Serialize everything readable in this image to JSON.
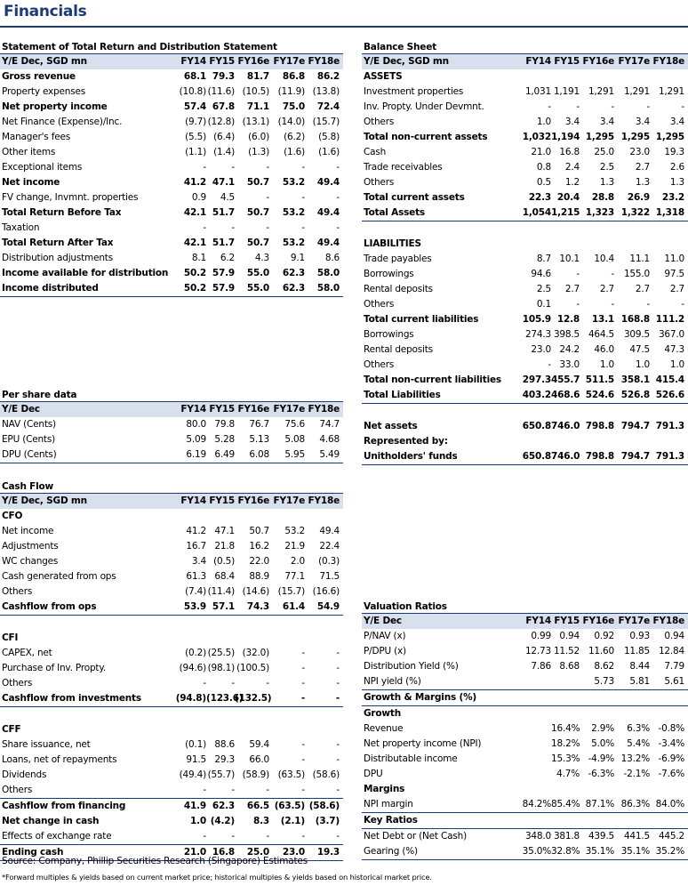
{
  "page_title": "Financials",
  "colors": {
    "accent": "#1a3a78",
    "header_bg": "#d8e0ee"
  },
  "tables": {
    "income": {
      "title": "Statement of Total Return and Distribution Statement",
      "header": [
        "Y/E Dec, SGD mn",
        "FY14",
        "FY15",
        "FY16e",
        "FY17e",
        "FY18e"
      ],
      "rows": [
        {
          "label": "Gross revenue",
          "values": [
            "68.1",
            "79.3",
            "81.7",
            "86.8",
            "86.2"
          ],
          "bold": true
        },
        {
          "label": "Property expenses",
          "values": [
            "(10.8)",
            "(11.6)",
            "(10.5)",
            "(11.9)",
            "(13.8)"
          ]
        },
        {
          "label": "Net property income",
          "values": [
            "57.4",
            "67.8",
            "71.1",
            "75.0",
            "72.4"
          ],
          "bold": true
        },
        {
          "label": "Net Finance (Expense)/Inc.",
          "values": [
            "(9.7)",
            "(12.8)",
            "(13.1)",
            "(14.0)",
            "(15.7)"
          ]
        },
        {
          "label": "Manager's fees",
          "values": [
            "(5.5)",
            "(6.4)",
            "(6.0)",
            "(6.2)",
            "(5.8)"
          ]
        },
        {
          "label": "Other items",
          "values": [
            "(1.1)",
            "(1.4)",
            "(1.3)",
            "(1.6)",
            "(1.6)"
          ]
        },
        {
          "label": "Exceptional items",
          "values": [
            "-",
            "-",
            "-",
            "-",
            "-"
          ]
        },
        {
          "label": "Net income",
          "values": [
            "41.2",
            "47.1",
            "50.7",
            "53.2",
            "49.4"
          ],
          "bold": true
        },
        {
          "label": "FV change, Invmnt. properties",
          "values": [
            "0.9",
            "4.5",
            "-",
            "-",
            "-"
          ]
        },
        {
          "label": "Total Return Before Tax",
          "values": [
            "42.1",
            "51.7",
            "50.7",
            "53.2",
            "49.4"
          ],
          "bold": true
        },
        {
          "label": "Taxation",
          "values": [
            "-",
            "-",
            "-",
            "-",
            "-"
          ]
        },
        {
          "label": "Total Return After Tax",
          "values": [
            "42.1",
            "51.7",
            "50.7",
            "53.2",
            "49.4"
          ],
          "bold": true
        },
        {
          "label": "Distribution adjustments",
          "values": [
            "8.1",
            "6.2",
            "4.3",
            "9.1",
            "8.6"
          ]
        },
        {
          "label": "Income available for distribution",
          "values": [
            "50.2",
            "57.9",
            "55.0",
            "62.3",
            "58.0"
          ],
          "bold": true
        },
        {
          "label": "Income distributed",
          "values": [
            "50.2",
            "57.9",
            "55.0",
            "62.3",
            "58.0"
          ],
          "bold": true,
          "bottom": true
        }
      ]
    },
    "pershare": {
      "title": "Per share data",
      "header": [
        "Y/E Dec",
        "FY14",
        "FY15",
        "FY16e",
        "FY17e",
        "FY18e"
      ],
      "rows": [
        {
          "label": "NAV (Cents)",
          "values": [
            "80.0",
            "79.8",
            "76.7",
            "75.6",
            "74.7"
          ]
        },
        {
          "label": "EPU (Cents)",
          "values": [
            "5.09",
            "5.28",
            "5.13",
            "5.08",
            "4.68"
          ]
        },
        {
          "label": "DPU (Cents)",
          "values": [
            "6.19",
            "6.49",
            "6.08",
            "5.95",
            "5.49"
          ],
          "bottom": true
        }
      ]
    },
    "cashflow": {
      "title": "Cash Flow",
      "header": [
        "Y/E Dec, SGD mn",
        "FY14",
        "FY15",
        "FY16e",
        "FY17e",
        "FY18e"
      ],
      "rows": [
        {
          "label": "CFO",
          "values": [
            "",
            "",
            "",
            "",
            ""
          ],
          "section": true
        },
        {
          "label": "Net income",
          "values": [
            "41.2",
            "47.1",
            "50.7",
            "53.2",
            "49.4"
          ]
        },
        {
          "label": "Adjustments",
          "values": [
            "16.7",
            "21.8",
            "16.2",
            "21.9",
            "22.4"
          ]
        },
        {
          "label": "WC changes",
          "values": [
            "3.4",
            "(0.5)",
            "22.0",
            "2.0",
            "(0.3)"
          ]
        },
        {
          "label": "Cash generated from ops",
          "values": [
            "61.3",
            "68.4",
            "88.9",
            "77.1",
            "71.5"
          ]
        },
        {
          "label": "Others",
          "values": [
            "(7.4)",
            "(11.4)",
            "(14.6)",
            "(15.7)",
            "(16.6)"
          ]
        },
        {
          "label": "Cashflow from ops",
          "values": [
            "53.9",
            "57.1",
            "74.3",
            "61.4",
            "54.9"
          ],
          "bold": true,
          "bottom": true
        },
        {
          "label": "",
          "values": [
            "",
            "",
            "",
            "",
            ""
          ]
        },
        {
          "label": "CFI",
          "values": [
            "",
            "",
            "",
            "",
            ""
          ],
          "section": true
        },
        {
          "label": "CAPEX, net",
          "values": [
            "(0.2)",
            "(25.5)",
            "(32.0)",
            "-",
            "-"
          ]
        },
        {
          "label": "Purchase of Inv. Propty.",
          "values": [
            "(94.6)",
            "(98.1)",
            "(100.5)",
            "-",
            "-"
          ]
        },
        {
          "label": "Others",
          "values": [
            "-",
            "-",
            "-",
            "-",
            "-"
          ]
        },
        {
          "label": "Cashflow from investments",
          "values": [
            "(94.8)",
            "(123.6)",
            "(132.5)",
            "-",
            "-"
          ],
          "bold": true,
          "bottom": true
        },
        {
          "label": "",
          "values": [
            "",
            "",
            "",
            "",
            ""
          ]
        },
        {
          "label": "CFF",
          "values": [
            "",
            "",
            "",
            "",
            ""
          ],
          "section": true
        },
        {
          "label": "Share issuance, net",
          "values": [
            "(0.1)",
            "88.6",
            "59.4",
            "-",
            "-"
          ]
        },
        {
          "label": "Loans, net of repayments",
          "values": [
            "91.5",
            "29.3",
            "66.0",
            "-",
            "-"
          ]
        },
        {
          "label": "Dividends",
          "values": [
            "(49.4)",
            "(55.7)",
            "(58.9)",
            "(63.5)",
            "(58.6)"
          ]
        },
        {
          "label": "Others",
          "values": [
            "-",
            "-",
            "-",
            "-",
            "-"
          ]
        },
        {
          "label": "Cashflow from financing",
          "values": [
            "41.9",
            "62.3",
            "66.5",
            "(63.5)",
            "(58.6)"
          ],
          "bold": true,
          "top": true
        },
        {
          "label": "Net change in cash",
          "values": [
            "1.0",
            "(4.2)",
            "8.3",
            "(2.1)",
            "(3.7)"
          ],
          "bold": true
        },
        {
          "label": "Effects of exchange rate",
          "values": [
            "-",
            "-",
            "-",
            "-",
            "-"
          ]
        },
        {
          "label": "Ending cash",
          "values": [
            "21.0",
            "16.8",
            "25.0",
            "23.0",
            "19.3"
          ],
          "bold": true,
          "top": true,
          "bottom": true
        }
      ]
    },
    "balance": {
      "title": "Balance Sheet",
      "header": [
        "Y/E Dec, SGD mn",
        "FY14",
        "FY15",
        "FY16e",
        "FY17e",
        "FY18e"
      ],
      "rows": [
        {
          "label": "ASSETS",
          "values": [
            "",
            "",
            "",
            "",
            ""
          ],
          "section": true
        },
        {
          "label": "Investment properties",
          "values": [
            "1,031",
            "1,191",
            "1,291",
            "1,291",
            "1,291"
          ]
        },
        {
          "label": "Inv. Propty. Under Devmnt.",
          "values": [
            "-",
            "-",
            "-",
            "-",
            "-"
          ]
        },
        {
          "label": "Others",
          "values": [
            "1.0",
            "3.4",
            "3.4",
            "3.4",
            "3.4"
          ]
        },
        {
          "label": "Total non-current assets",
          "values": [
            "1,032",
            "1,194",
            "1,295",
            "1,295",
            "1,295"
          ],
          "bold": true
        },
        {
          "label": "Cash",
          "values": [
            "21.0",
            "16.8",
            "25.0",
            "23.0",
            "19.3"
          ]
        },
        {
          "label": "Trade receivables",
          "values": [
            "0.8",
            "2.4",
            "2.5",
            "2.7",
            "2.6"
          ]
        },
        {
          "label": "Others",
          "values": [
            "0.5",
            "1.2",
            "1.3",
            "1.3",
            "1.3"
          ]
        },
        {
          "label": "Total current assets",
          "values": [
            "22.3",
            "20.4",
            "28.8",
            "26.9",
            "23.2"
          ],
          "bold": true
        },
        {
          "label": "Total Assets",
          "values": [
            "1,054",
            "1,215",
            "1,323",
            "1,322",
            "1,318"
          ],
          "bold": true,
          "bottom": true
        },
        {
          "label": "",
          "values": [
            "",
            "",
            "",
            "",
            ""
          ]
        },
        {
          "label": "LIABILITIES",
          "values": [
            "",
            "",
            "",
            "",
            ""
          ],
          "section": true
        },
        {
          "label": "Trade payables",
          "values": [
            "8.7",
            "10.1",
            "10.4",
            "11.1",
            "11.0"
          ]
        },
        {
          "label": "Borrowings",
          "values": [
            "94.6",
            "-",
            "-",
            "155.0",
            "97.5"
          ]
        },
        {
          "label": "Rental deposits",
          "values": [
            "2.5",
            "2.7",
            "2.7",
            "2.7",
            "2.7"
          ]
        },
        {
          "label": "Others",
          "values": [
            "0.1",
            "-",
            "-",
            "-",
            "-"
          ]
        },
        {
          "label": "Total current liabilities",
          "values": [
            "105.9",
            "12.8",
            "13.1",
            "168.8",
            "111.2"
          ],
          "bold": true
        },
        {
          "label": "Borrowings",
          "values": [
            "274.3",
            "398.5",
            "464.5",
            "309.5",
            "367.0"
          ]
        },
        {
          "label": "Rental deposits",
          "values": [
            "23.0",
            "24.2",
            "46.0",
            "47.5",
            "47.3"
          ]
        },
        {
          "label": "Others",
          "values": [
            "-",
            "33.0",
            "1.0",
            "1.0",
            "1.0"
          ]
        },
        {
          "label": "Total non-current liabilities",
          "values": [
            "297.3",
            "455.7",
            "511.5",
            "358.1",
            "415.4"
          ],
          "bold": true
        },
        {
          "label": "Total Liabilities",
          "values": [
            "403.2",
            "468.6",
            "524.6",
            "526.8",
            "526.6"
          ],
          "bold": true,
          "bottom": true
        },
        {
          "label": "",
          "values": [
            "",
            "",
            "",
            "",
            ""
          ]
        },
        {
          "label": "Net assets",
          "values": [
            "650.8",
            "746.0",
            "798.8",
            "794.7",
            "791.3"
          ],
          "bold": true
        },
        {
          "label": "Represented by:",
          "values": [
            "",
            "",
            "",
            "",
            ""
          ],
          "bold": true
        },
        {
          "label": "Unitholders' funds",
          "values": [
            "650.8",
            "746.0",
            "798.8",
            "794.7",
            "791.3"
          ],
          "bold": true,
          "bottom": true
        }
      ]
    },
    "valuation": {
      "title": "Valuation Ratios",
      "header": [
        "Y/E Dec",
        "FY14",
        "FY15",
        "FY16e",
        "FY17e",
        "FY18e"
      ],
      "rows": [
        {
          "label": "P/NAV (x)",
          "values": [
            "0.99",
            "0.94",
            "0.92",
            "0.93",
            "0.94"
          ]
        },
        {
          "label": "P/DPU (x)",
          "values": [
            "12.73",
            "11.52",
            "11.60",
            "11.85",
            "12.84"
          ]
        },
        {
          "label": "Distribution Yield (%)",
          "values": [
            "7.86",
            "8.68",
            "8.62",
            "8.44",
            "7.79"
          ]
        },
        {
          "label": "NPI yield (%)",
          "values": [
            "",
            "",
            "5.73",
            "5.81",
            "5.61"
          ],
          "bottom": true
        },
        {
          "label": "Growth & Margins (%)",
          "values": [
            "",
            "",
            "",
            "",
            ""
          ],
          "section": true,
          "bottom": true
        },
        {
          "label": "Growth",
          "values": [
            "",
            "",
            "",
            "",
            ""
          ],
          "section": true
        },
        {
          "label": "Revenue",
          "values": [
            "",
            "16.4%",
            "2.9%",
            "6.3%",
            "-0.8%"
          ]
        },
        {
          "label": "Net property income (NPI)",
          "values": [
            "",
            "18.2%",
            "5.0%",
            "5.4%",
            "-3.4%"
          ]
        },
        {
          "label": "Distributable income",
          "values": [
            "",
            "15.3%",
            "-4.9%",
            "13.2%",
            "-6.9%"
          ]
        },
        {
          "label": "DPU",
          "values": [
            "",
            "4.7%",
            "-6.3%",
            "-2.1%",
            "-7.6%"
          ]
        },
        {
          "label": "Margins",
          "values": [
            "",
            "",
            "",
            "",
            ""
          ],
          "section": true
        },
        {
          "label": "NPI margin",
          "values": [
            "84.2%",
            "85.4%",
            "87.1%",
            "86.3%",
            "84.0%"
          ],
          "bottom": true
        },
        {
          "label": "Key Ratios",
          "values": [
            "",
            "",
            "",
            "",
            ""
          ],
          "section": true,
          "bottom": true
        },
        {
          "label": "Net Debt or (Net Cash)",
          "values": [
            "348.0",
            "381.8",
            "439.5",
            "441.5",
            "445.2"
          ]
        },
        {
          "label": "Gearing (%)",
          "values": [
            "35.0%",
            "32.8%",
            "35.1%",
            "35.1%",
            "35.2%"
          ],
          "bottom": true
        }
      ]
    }
  },
  "source": "Source: Company, Phillip Securities Research (Singapore) Estimates",
  "footnote": "*Forward multiples & yields based on current market price; historical multiples & yields based on historical market price."
}
